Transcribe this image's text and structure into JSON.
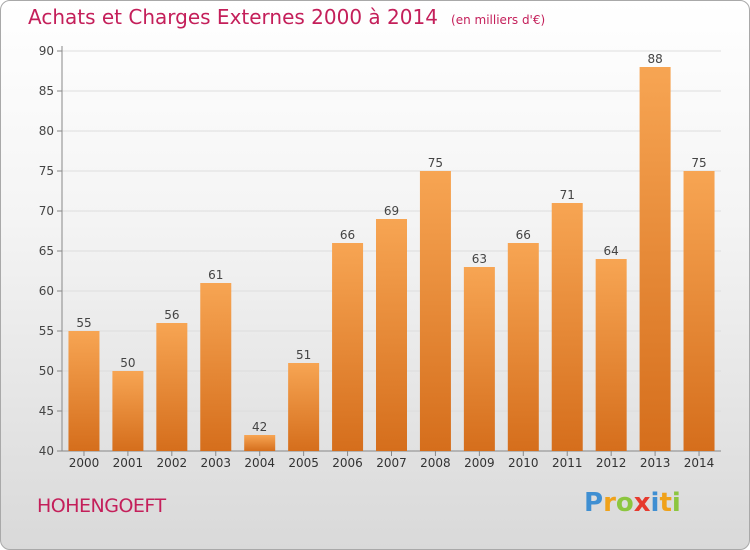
{
  "header": {
    "title": "Achats et Charges Externes 2000 à 2014",
    "unit": "(en milliers d'€)"
  },
  "footer": {
    "town": "HOHENGOEFT",
    "logo_letters": [
      "P",
      "r",
      "o",
      "x",
      "i",
      "t",
      "i"
    ],
    "logo_colors": [
      "#3f8fd2",
      "#f0a21a",
      "#8cc63f",
      "#e63a2e",
      "#3f8fd2",
      "#f0a21a",
      "#8cc63f"
    ]
  },
  "colors": {
    "title": "#c41f5a",
    "bar_top": "#f7a553",
    "bar_bottom": "#d56e1c"
  },
  "chart_data": {
    "type": "bar",
    "categories": [
      "2000",
      "2001",
      "2002",
      "2003",
      "2004",
      "2005",
      "2006",
      "2007",
      "2008",
      "2009",
      "2010",
      "2011",
      "2012",
      "2013",
      "2014"
    ],
    "values": [
      55,
      50,
      56,
      61,
      42,
      51,
      66,
      69,
      75,
      63,
      66,
      71,
      64,
      88,
      75
    ],
    "ylim": [
      40,
      90
    ],
    "yticks": [
      40,
      45,
      50,
      55,
      60,
      65,
      70,
      75,
      80,
      85,
      90
    ],
    "grid": true
  }
}
